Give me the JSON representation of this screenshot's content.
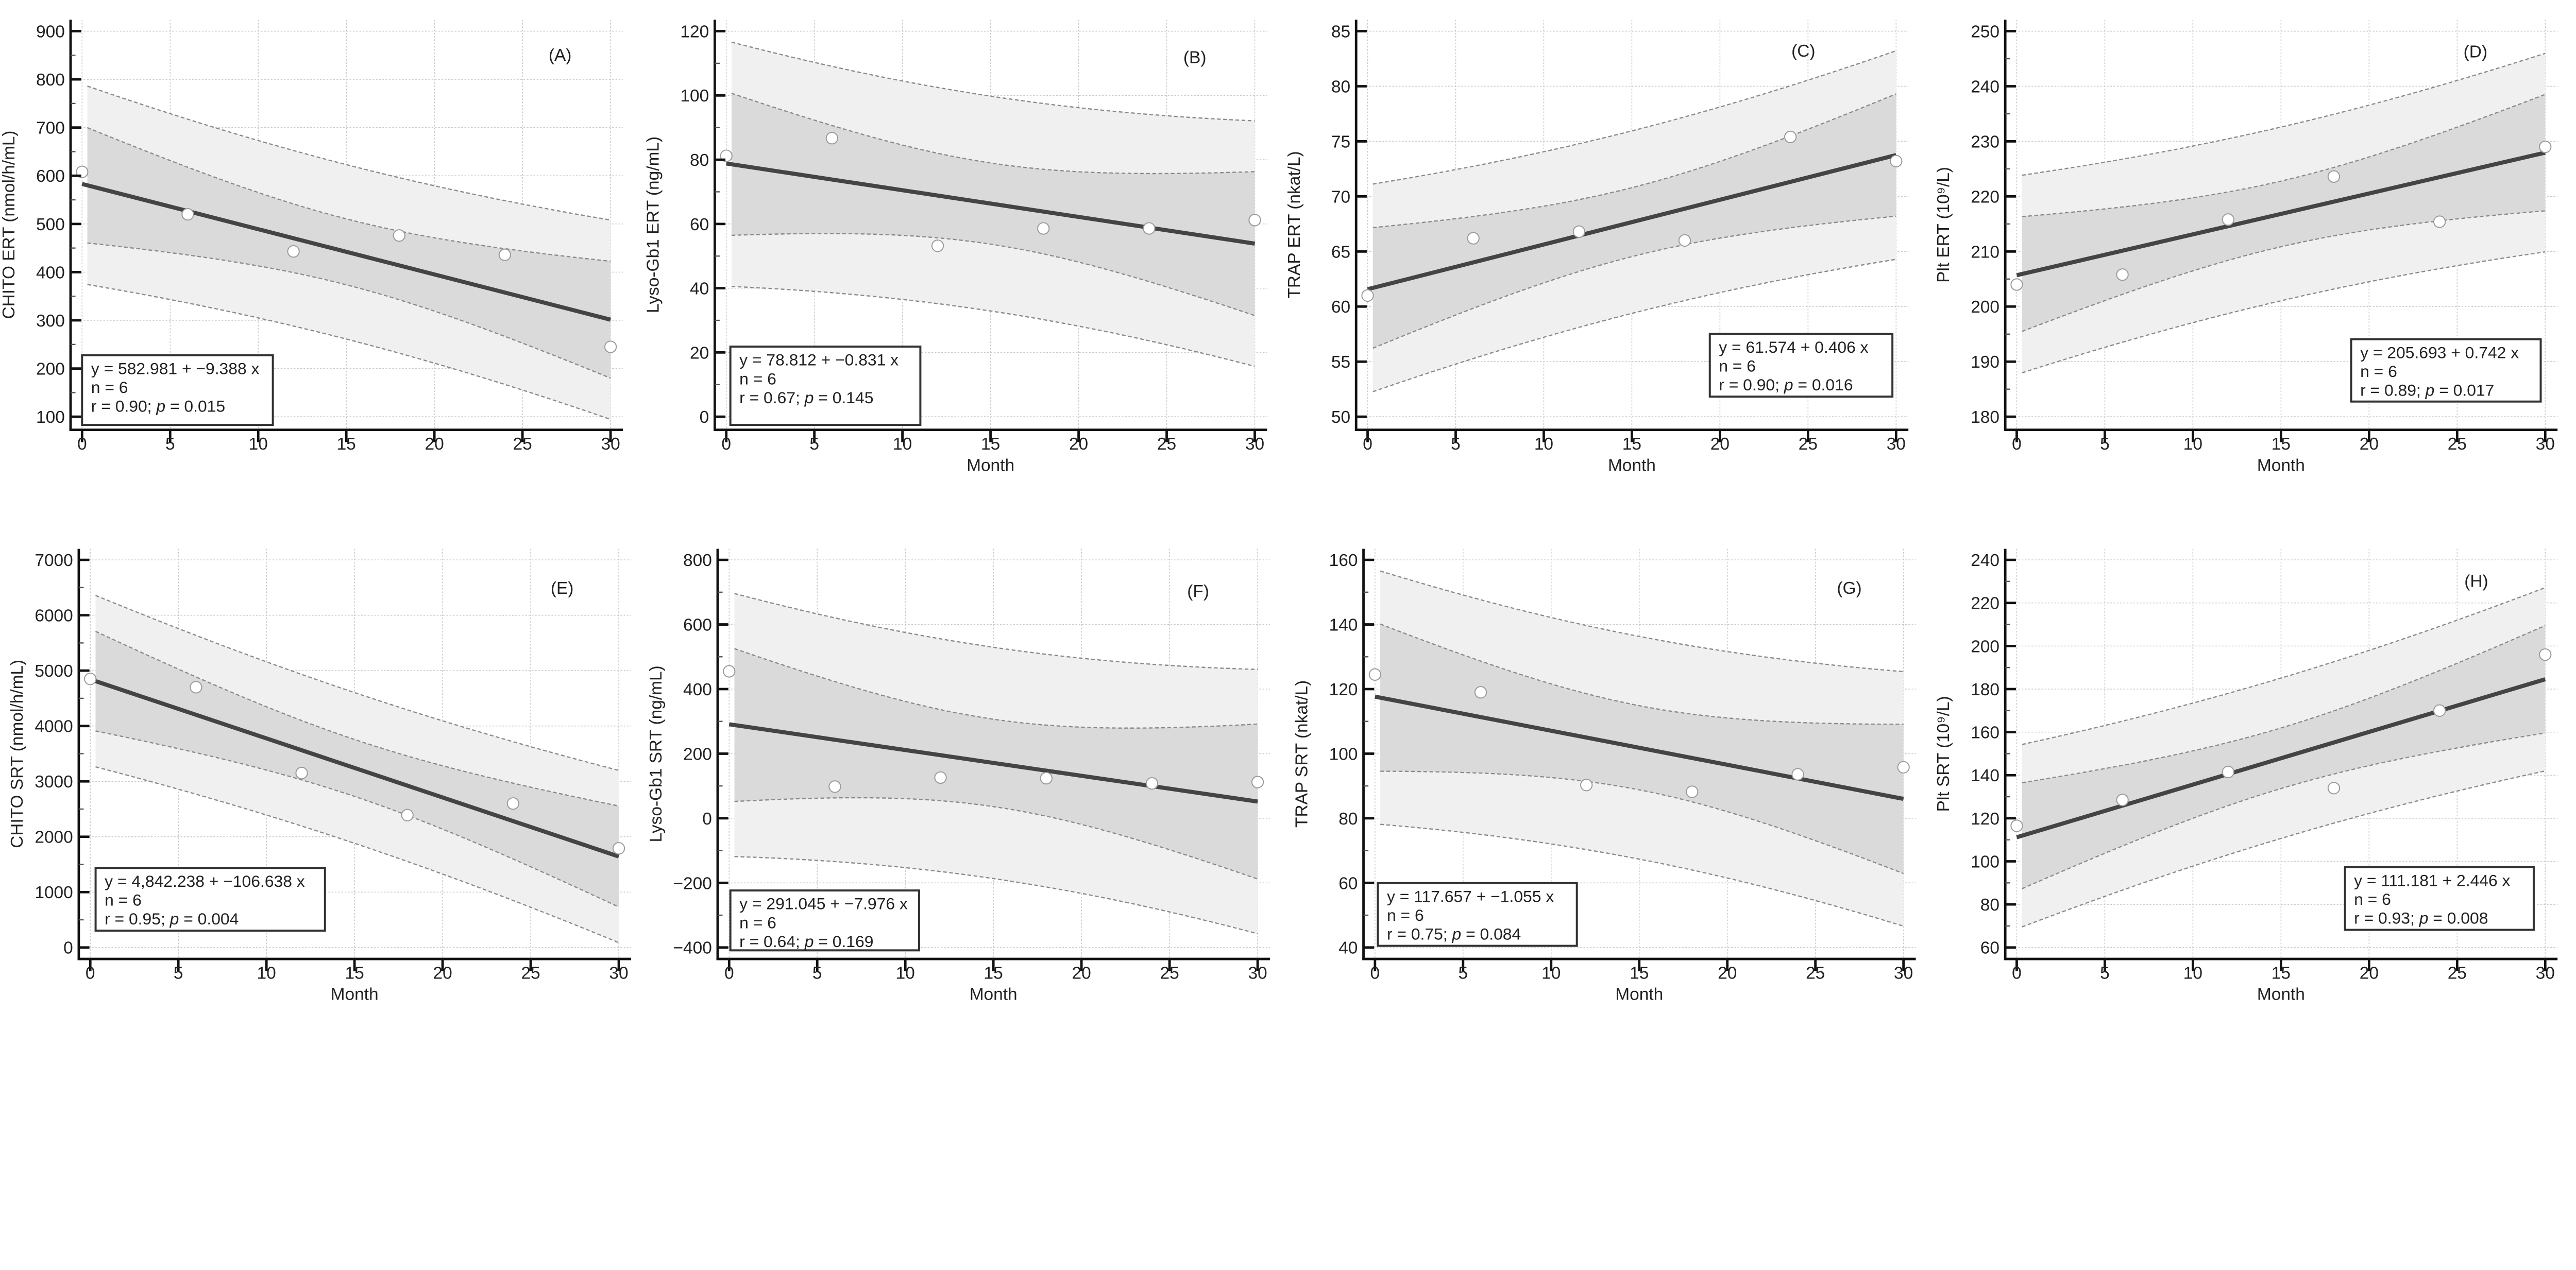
{
  "chart_data": [
    {
      "panel_label": "(A)",
      "type": "scatter",
      "xlabel": "",
      "ylabel": "CHITO ERT (nmol/h/mL)",
      "x": [
        0,
        6,
        12,
        18,
        24,
        30
      ],
      "y": [
        608,
        520,
        443,
        476,
        436,
        245
      ],
      "xticks": [
        0,
        5,
        10,
        15,
        20,
        25,
        30
      ],
      "yticks": [
        100,
        200,
        300,
        400,
        500,
        600,
        700,
        800,
        900
      ],
      "yminor": 50,
      "intercept": 582.981,
      "slope": -9.388,
      "stats": {
        "equation": "y = 582.981  +  −9.388  x",
        "n": "n = 6",
        "r": "r = 0.90; ",
        "p_symbol": "p",
        "p": " = 0.015"
      }
    },
    {
      "panel_label": "(B)",
      "type": "scatter",
      "xlabel": "Month",
      "ylabel": "Lyso-Gb1 ERT (ng/mL)",
      "x": [
        0,
        6,
        12,
        18,
        24,
        30
      ],
      "y": [
        81.2,
        86.7,
        53.2,
        58.6,
        58.6,
        61.2
      ],
      "xticks": [
        0,
        5,
        10,
        15,
        20,
        25,
        30
      ],
      "yticks": [
        0,
        20,
        40,
        60,
        80,
        100,
        120
      ],
      "yminor": 10,
      "intercept": 78.812,
      "slope": -0.831,
      "stats": {
        "equation": "y = 78.812  +  −0.831  x",
        "n": "n = 6",
        "r": "r = 0.67; ",
        "p_symbol": "p",
        "p": " = 0.145"
      }
    },
    {
      "panel_label": "(C)",
      "type": "scatter",
      "xlabel": "Month",
      "ylabel": "TRAP ERT (nkat/L)",
      "x": [
        0,
        6,
        12,
        18,
        24,
        30
      ],
      "y": [
        61.0,
        66.2,
        66.8,
        66.0,
        75.4,
        73.2
      ],
      "xticks": [
        0,
        5,
        10,
        15,
        20,
        25,
        30
      ],
      "yticks": [
        50,
        55,
        60,
        65,
        70,
        75,
        80,
        85
      ],
      "yminor": null,
      "intercept": 61.574,
      "slope": 0.406,
      "stats": {
        "equation": "y = 61.574  +  0.406  x",
        "n": "n = 6",
        "r": "r = 0.90; ",
        "p_symbol": "p",
        "p": " = 0.016"
      }
    },
    {
      "panel_label": "(D)",
      "type": "scatter",
      "xlabel": "Month",
      "ylabel": "Plt ERT (10⁹/L)",
      "x": [
        0,
        6,
        12,
        18,
        24,
        30
      ],
      "y": [
        204.0,
        205.8,
        215.8,
        223.6,
        215.4,
        229.0
      ],
      "xticks": [
        0,
        5,
        10,
        15,
        20,
        25,
        30
      ],
      "yticks": [
        180,
        190,
        200,
        210,
        220,
        230,
        240,
        250
      ],
      "yminor": 5,
      "intercept": 205.693,
      "slope": 0.742,
      "stats": {
        "equation": "y = 205.693  +  0.742  x",
        "n": "n = 6",
        "r": "r = 0.89; ",
        "p_symbol": "p",
        "p": " = 0.017"
      }
    },
    {
      "panel_label": "(E)",
      "type": "scatter",
      "xlabel": "Month",
      "ylabel": "CHITO SRT (nmol/h/mL)",
      "x": [
        0,
        6,
        12,
        18,
        24,
        30
      ],
      "y": [
        4850,
        4700,
        3150,
        2390,
        2600,
        1790
      ],
      "xticks": [
        0,
        5,
        10,
        15,
        20,
        25,
        30
      ],
      "yticks": [
        0,
        1000,
        2000,
        3000,
        4000,
        5000,
        6000,
        7000
      ],
      "yminor": 500,
      "intercept": 4842.238,
      "slope": -106.638,
      "stats": {
        "equation": "y = 4,842.238  +  −106.638  x",
        "n": "n = 6",
        "r": "r = 0.95; ",
        "p_symbol": "p",
        "p": " = 0.004"
      }
    },
    {
      "panel_label": "(F)",
      "type": "scatter",
      "xlabel": "Month",
      "ylabel": "Lyso-Gb1 SRT (ng/mL)",
      "x": [
        0,
        6,
        12,
        18,
        24,
        30
      ],
      "y": [
        455,
        98,
        126,
        124,
        108,
        112
      ],
      "xticks": [
        0,
        5,
        10,
        15,
        20,
        25,
        30
      ],
      "yticks": [
        -400,
        -200,
        0,
        200,
        400,
        600,
        800
      ],
      "yminor": 100,
      "intercept": 291.045,
      "slope": -7.976,
      "stats": {
        "equation": "y = 291.045  +  −7.976  x",
        "n": "n = 6",
        "r": "r = 0.64; ",
        "p_symbol": "p",
        "p": " = 0.169"
      }
    },
    {
      "panel_label": "(G)",
      "type": "scatter",
      "xlabel": "Month",
      "ylabel": "TRAP SRT (nkat/L)",
      "x": [
        0,
        6,
        12,
        18,
        24,
        30
      ],
      "y": [
        124.5,
        119.0,
        90.3,
        88.2,
        93.6,
        95.8
      ],
      "xticks": [
        0,
        5,
        10,
        15,
        20,
        25,
        30
      ],
      "yticks": [
        40,
        60,
        80,
        100,
        120,
        140,
        160
      ],
      "yminor": 10,
      "intercept": 117.657,
      "slope": -1.055,
      "stats": {
        "equation": "y = 117.657  +  −1.055  x",
        "n": "n = 6",
        "r": "r = 0.75; ",
        "p_symbol": "p",
        "p": " = 0.084"
      }
    },
    {
      "panel_label": "(H)",
      "type": "scatter",
      "xlabel": "Month",
      "ylabel": "Plt SRT (10⁹/L)",
      "x": [
        0,
        6,
        12,
        18,
        24,
        30
      ],
      "y": [
        116.5,
        128.5,
        141.5,
        134.0,
        170.0,
        196.0
      ],
      "xticks": [
        0,
        5,
        10,
        15,
        20,
        25,
        30
      ],
      "yticks": [
        60,
        80,
        100,
        120,
        140,
        160,
        180,
        200,
        220,
        240
      ],
      "yminor": 10,
      "intercept": 111.181,
      "slope": 2.446,
      "stats": {
        "equation": "y = 111.181  +  2.446  x",
        "n": "n = 6",
        "r": "r = 0.93; ",
        "p_symbol": "p",
        "p": " = 0.008"
      }
    }
  ],
  "colors": {
    "prediction_band": "#f0f0f0",
    "confidence_band": "#dadada",
    "regression_line": "#444444",
    "band_edge": "#8a8a8a",
    "point_fill": "#ffffff",
    "point_stroke": "#9a9a9a"
  }
}
